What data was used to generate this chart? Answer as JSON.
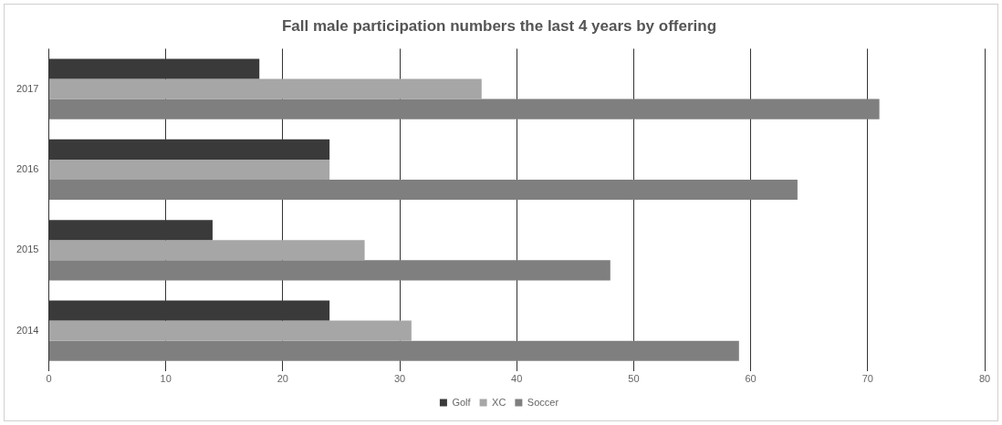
{
  "chart_data": {
    "type": "bar",
    "orientation": "horizontal",
    "title": "Fall male participation numbers the last 4 years by offering",
    "categories": [
      "2017",
      "2016",
      "2015",
      "2014"
    ],
    "series": [
      {
        "name": "Golf",
        "color": "#3a3a3a",
        "values": [
          18,
          24,
          14,
          24
        ]
      },
      {
        "name": "XC",
        "color": "#a6a6a6",
        "values": [
          37,
          24,
          27,
          31
        ]
      },
      {
        "name": "Soccer",
        "color": "#7f7f7f",
        "values": [
          71,
          64,
          48,
          59
        ]
      }
    ],
    "xlim": [
      0,
      80
    ],
    "xticks": [
      0,
      10,
      20,
      30,
      40,
      50,
      60,
      70,
      80
    ],
    "grid": "x",
    "legend": "bottom"
  }
}
